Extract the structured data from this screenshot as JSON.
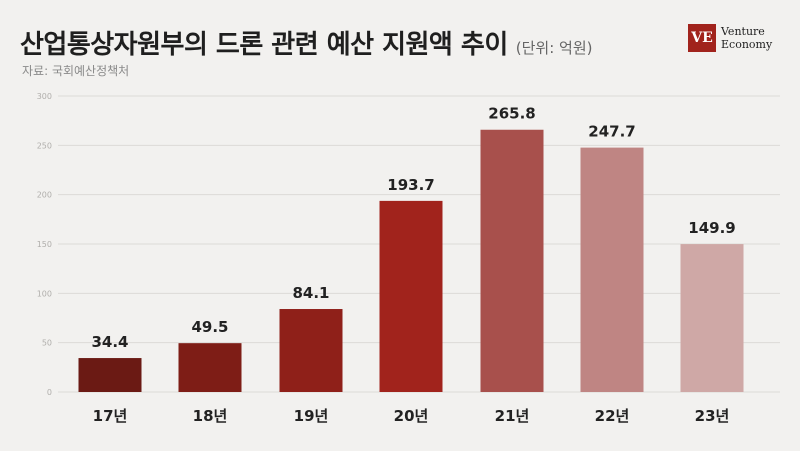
{
  "header": {
    "title": "산업통상자원부의 드론 관련 예산 지원액 추이",
    "unit": "(단위: 억원)",
    "source": "자료: 국회예산정책처",
    "logo_mark": "VE",
    "logo_line1": "Venture",
    "logo_line2": "Economy"
  },
  "chart_data": {
    "type": "bar",
    "categories": [
      "17년",
      "18년",
      "19년",
      "20년",
      "21년",
      "22년",
      "23년"
    ],
    "values": [
      34.4,
      49.5,
      84.1,
      193.7,
      265.8,
      247.7,
      149.9
    ],
    "value_labels": [
      "34.4",
      "49.5",
      "84.1",
      "193.7",
      "265.8",
      "247.7",
      "149.9"
    ],
    "bar_colors": [
      "#6b1a14",
      "#7e1d16",
      "#8f2019",
      "#a1231c",
      "#a8504c",
      "#bf8583",
      "#cfa8a6"
    ],
    "yticks": [
      0,
      50,
      100,
      150,
      200,
      250,
      300
    ],
    "ylim": [
      0,
      300
    ],
    "grid": true,
    "xlabel": "",
    "ylabel": ""
  }
}
